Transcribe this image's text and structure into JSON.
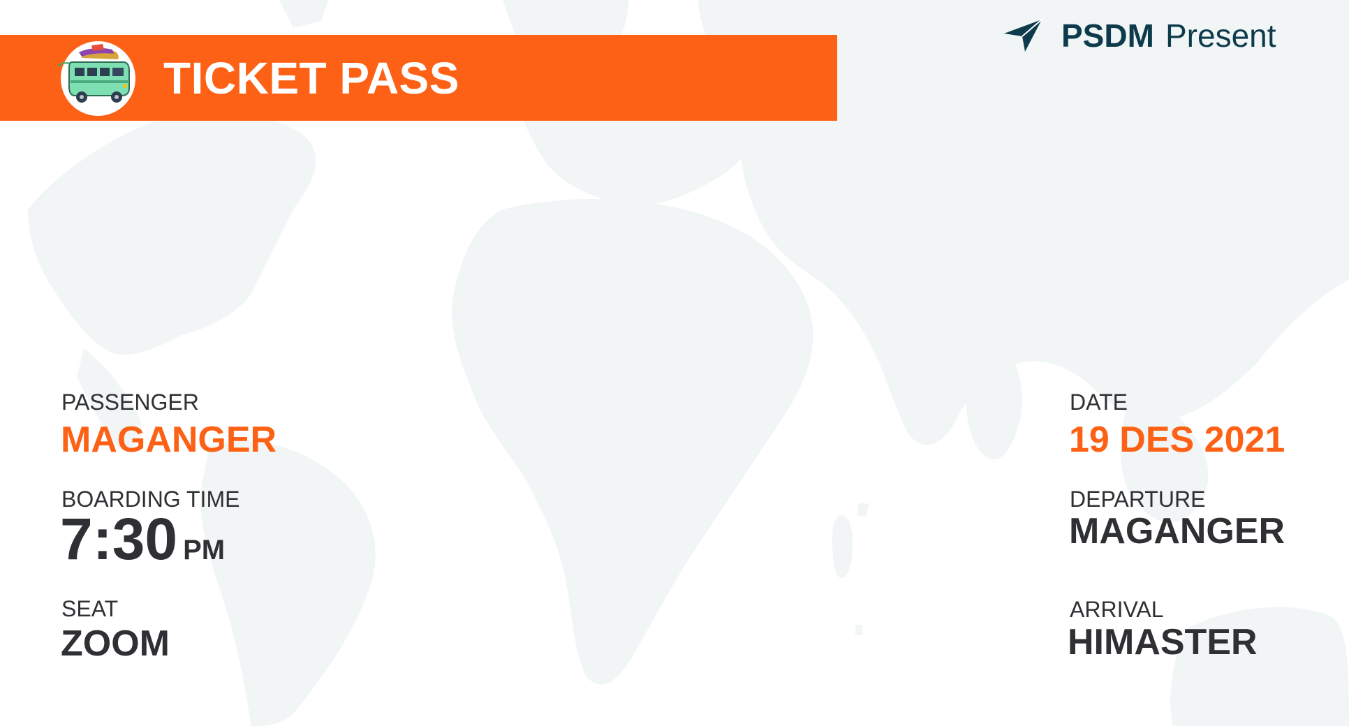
{
  "header": {
    "title": "TICKET PASS",
    "logo_icon": "travel-bus-icon",
    "bar_color": "#fd6116"
  },
  "brand": {
    "icon": "paper-plane-icon",
    "name_bold": "PSDM",
    "name_light": "Present",
    "color": "#0e3b4c"
  },
  "passenger": {
    "label": "PASSENGER",
    "value": "MAGANGER"
  },
  "boarding_time": {
    "label": "BOARDING TIME",
    "time": "7:30",
    "period": "PM"
  },
  "seat": {
    "label": "SEAT",
    "value": "ZOOM"
  },
  "date": {
    "label": "DATE",
    "value": "19 DES 2021"
  },
  "departure": {
    "label": "DEPARTURE",
    "value": "MAGANGER"
  },
  "arrival": {
    "label": "ARRIVAL",
    "value": "HIMASTER"
  },
  "colors": {
    "accent": "#fd6116",
    "text": "#2e3033",
    "map": "#f1f5f5"
  }
}
